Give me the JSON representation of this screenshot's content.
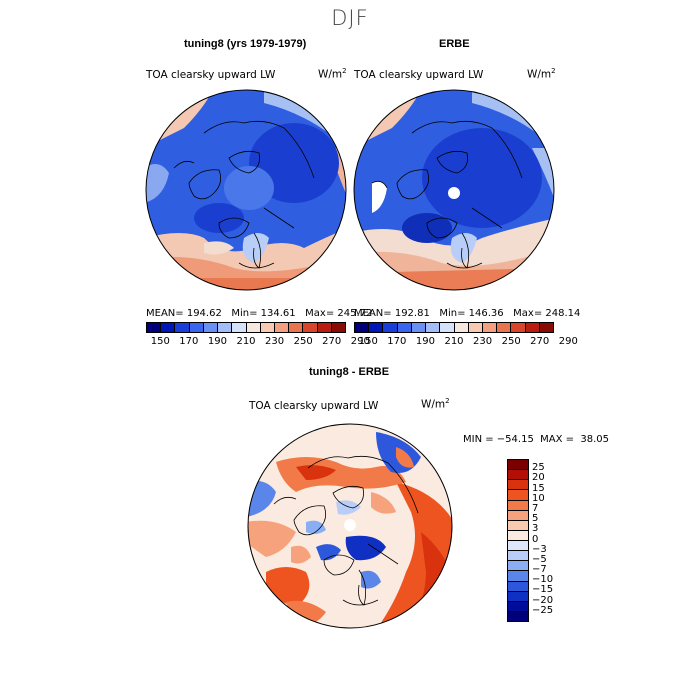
{
  "title": "DJF",
  "panels": [
    {
      "title": "tuning8 (yrs 1979-1979)",
      "variable": "TOA clearsky upward LW",
      "units_base": "W/m",
      "units_exp": "2",
      "stats_text": "MEAN= 194.62   Min= 134.61   Max= 245.72",
      "stats": {
        "mean": 194.62,
        "min": 134.61,
        "max": 245.72
      }
    },
    {
      "title": "ERBE",
      "variable": "TOA clearsky upward LW",
      "units_base": "W/m",
      "units_exp": "2",
      "stats_text": "MEAN= 192.81   Min= 146.36   Max= 248.14",
      "stats": {
        "mean": 192.81,
        "min": 146.36,
        "max": 248.14
      }
    },
    {
      "title": "tuning8 - ERBE",
      "variable": "TOA clearsky upward LW",
      "units_base": "W/m",
      "units_exp": "2",
      "stats_text": "MIN = −54.15  MAX =  38.05",
      "stats": {
        "min": -54.15,
        "max": 38.05
      }
    }
  ],
  "colorbar_abs": {
    "ticks": [
      "150",
      "170",
      "190",
      "210",
      "230",
      "250",
      "270",
      "290"
    ],
    "colors": [
      "#00007a",
      "#0016b4",
      "#1a3fd8",
      "#3a66ee",
      "#6a90f6",
      "#a2bdf8",
      "#d4e2fa",
      "#f6e8df",
      "#f8c9b3",
      "#f2a080",
      "#ea7350",
      "#d8452a",
      "#b81d10",
      "#8a0a05"
    ]
  },
  "colorbar_diff": {
    "ticks": [
      "25",
      "20",
      "15",
      "10",
      "7",
      "5",
      "3",
      "0",
      "−3",
      "−5",
      "−7",
      "−10",
      "−15",
      "−20",
      "−25"
    ],
    "colors": [
      "#7a0000",
      "#b40f06",
      "#d8320f",
      "#ee5420",
      "#f27a48",
      "#f6a27c",
      "#f8cbb0",
      "#faeadf",
      "#dce8fa",
      "#b8cef8",
      "#8aaef4",
      "#5a86ea",
      "#2e58dc",
      "#1030c4",
      "#000d9a",
      "#00007a"
    ]
  },
  "colors": {
    "ocean_blue": "#2f5fe0",
    "deep_blue": "#1a3fd0",
    "light_blue": "#8aa8f0",
    "pale": "#f3dcd0",
    "orange": "#ef9a78",
    "red": "#e0602e"
  }
}
